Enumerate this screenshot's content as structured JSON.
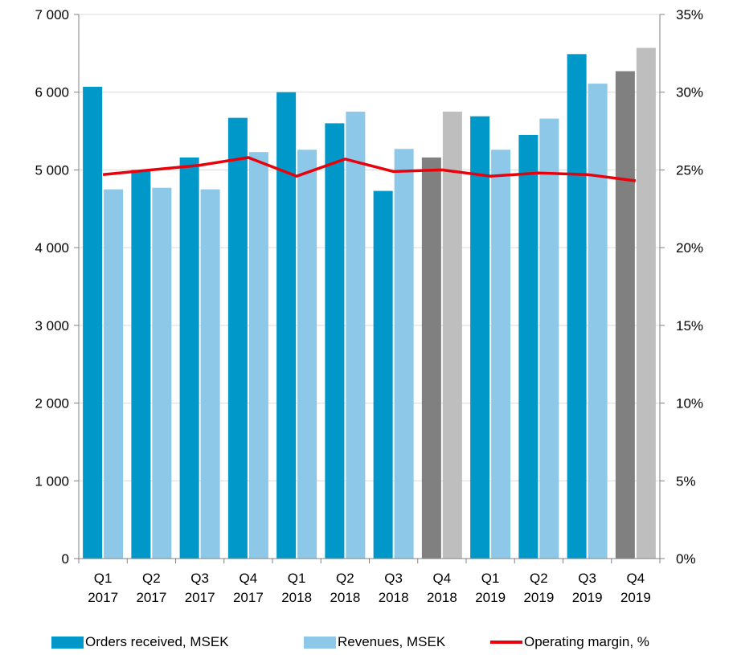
{
  "chart_data": {
    "type": "bar",
    "categories": [
      [
        "Q1",
        "2017"
      ],
      [
        "Q2",
        "2017"
      ],
      [
        "Q3",
        "2017"
      ],
      [
        "Q4",
        "2017"
      ],
      [
        "Q1",
        "2018"
      ],
      [
        "Q2",
        "2018"
      ],
      [
        "Q3",
        "2018"
      ],
      [
        "Q4",
        "2018"
      ],
      [
        "Q1",
        "2019"
      ],
      [
        "Q2",
        "2019"
      ],
      [
        "Q3",
        "2019"
      ],
      [
        "Q4",
        "2019"
      ]
    ],
    "series": [
      {
        "name": "Orders received, MSEK",
        "type": "bar",
        "axis": "left",
        "color": "#0098C8",
        "values": [
          6070,
          5000,
          5160,
          5670,
          6000,
          5600,
          4730,
          5160,
          5690,
          5450,
          6490,
          6270
        ]
      },
      {
        "name": "Revenues, MSEK",
        "type": "bar",
        "axis": "left",
        "color": "#8EC8E8",
        "values": [
          4750,
          4770,
          4750,
          5230,
          5260,
          5750,
          5270,
          5750,
          5260,
          5660,
          6110,
          6570
        ]
      },
      {
        "name": "Operating margin, %",
        "type": "line",
        "axis": "right",
        "color": "#E8000B",
        "values": [
          24.7,
          25.0,
          25.3,
          25.8,
          24.6,
          25.7,
          24.9,
          25.0,
          24.6,
          24.8,
          24.7,
          24.3
        ]
      }
    ],
    "highlight_categories": [
      7,
      11
    ],
    "highlight_colors": {
      "Orders received, MSEK": "#808080",
      "Revenues, MSEK": "#BEBEBE"
    },
    "y_left": {
      "ylim": [
        0,
        7000
      ],
      "ticks": [
        0,
        1000,
        2000,
        3000,
        4000,
        5000,
        6000,
        7000
      ],
      "tick_labels": [
        "0",
        "1 000",
        "2 000",
        "3 000",
        "4 000",
        "5 000",
        "6 000",
        "7 000"
      ]
    },
    "y_right": {
      "ylim": [
        0,
        35
      ],
      "ticks": [
        0,
        5,
        10,
        15,
        20,
        25,
        30,
        35
      ],
      "tick_labels": [
        "0%",
        "5%",
        "10%",
        "15%",
        "20%",
        "25%",
        "30%",
        "35%"
      ]
    },
    "grid": true,
    "legend_position": "bottom"
  }
}
